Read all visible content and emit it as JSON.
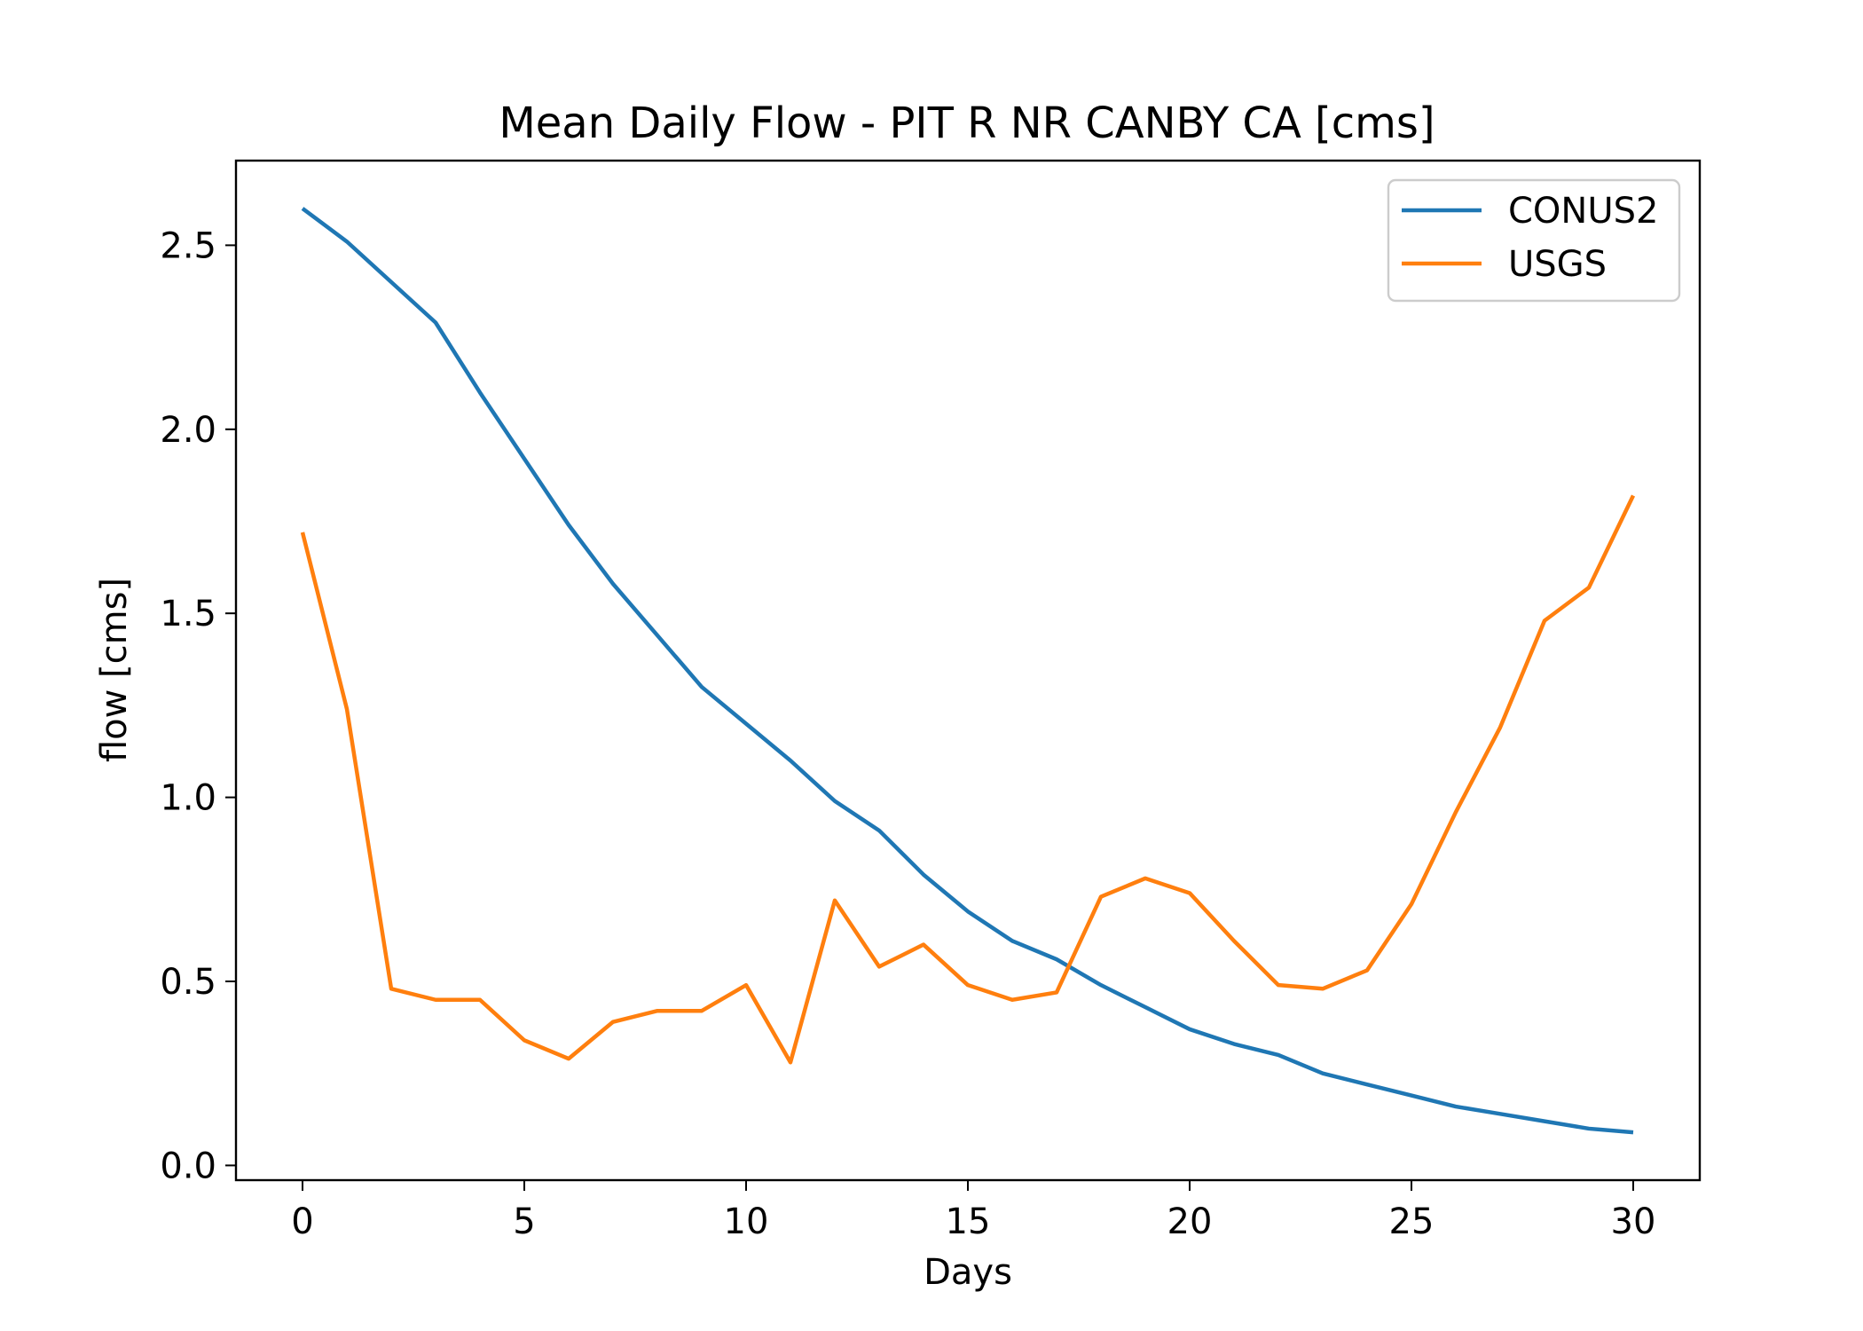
{
  "chart_data": {
    "type": "line",
    "title": "Mean Daily Flow - PIT R NR CANBY CA [cms]",
    "xlabel": "Days",
    "ylabel": "flow [cms]",
    "xlim": [
      -1.5,
      31.5
    ],
    "ylim": [
      -0.04,
      2.73
    ],
    "xticks": [
      0,
      5,
      10,
      15,
      20,
      25,
      30
    ],
    "xtick_labels": [
      "0",
      "5",
      "10",
      "15",
      "20",
      "25",
      "30"
    ],
    "yticks": [
      0.0,
      0.5,
      1.0,
      1.5,
      2.0,
      2.5
    ],
    "ytick_labels": [
      "0.0",
      "0.5",
      "1.0",
      "1.5",
      "2.0",
      "2.5"
    ],
    "grid": false,
    "legend_position": "top-right",
    "x": [
      0,
      1,
      2,
      3,
      4,
      5,
      6,
      7,
      8,
      9,
      10,
      11,
      12,
      13,
      14,
      15,
      16,
      17,
      18,
      19,
      20,
      21,
      22,
      23,
      24,
      25,
      26,
      27,
      28,
      29,
      30
    ],
    "series": [
      {
        "name": "CONUS2",
        "color": "#1f77b4",
        "values": [
          2.6,
          2.51,
          2.4,
          2.29,
          2.1,
          1.92,
          1.74,
          1.58,
          1.44,
          1.3,
          1.2,
          1.1,
          0.99,
          0.91,
          0.79,
          0.69,
          0.61,
          0.56,
          0.49,
          0.43,
          0.37,
          0.33,
          0.3,
          0.25,
          0.22,
          0.19,
          0.16,
          0.14,
          0.12,
          0.1,
          0.09
        ]
      },
      {
        "name": "USGS",
        "color": "#ff7f0e",
        "values": [
          1.72,
          1.24,
          0.48,
          0.45,
          0.45,
          0.34,
          0.29,
          0.39,
          0.42,
          0.42,
          0.49,
          0.28,
          0.72,
          0.54,
          0.6,
          0.49,
          0.45,
          0.47,
          0.73,
          0.78,
          0.74,
          0.61,
          0.49,
          0.48,
          0.53,
          0.71,
          0.96,
          1.19,
          1.48,
          1.57,
          1.82
        ]
      }
    ]
  }
}
